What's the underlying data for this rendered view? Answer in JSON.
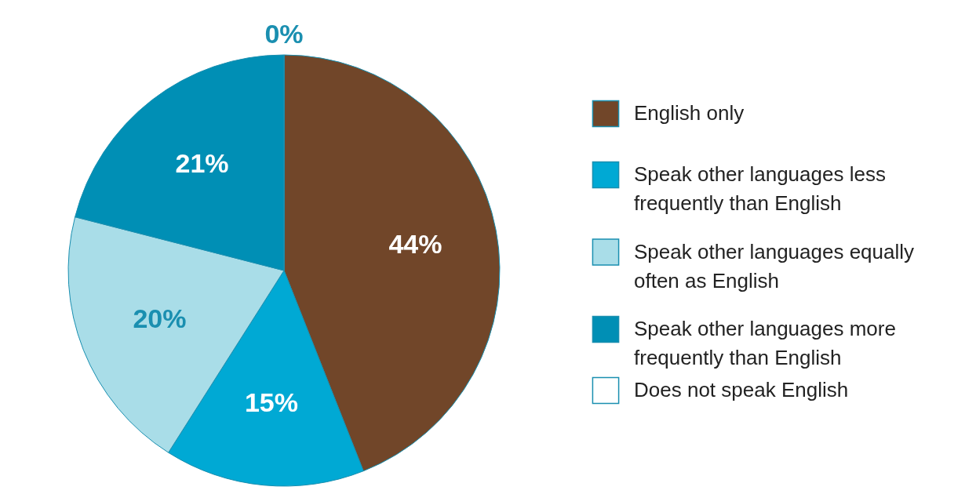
{
  "chart_data": {
    "type": "pie",
    "categories": [
      "English only",
      "Speak other languages less frequently than English",
      "Speak other languages equally often as English",
      "Speak other languages more frequently than English",
      "Does not speak English"
    ],
    "values": [
      44,
      15,
      20,
      21,
      0
    ],
    "colors": [
      "#714629",
      "#00a9d4",
      "#a9dde8",
      "#008fb5",
      "#ffffff"
    ],
    "value_labels": [
      "44%",
      "15%",
      "20%",
      "21%",
      "0%"
    ],
    "legend": "right"
  }
}
